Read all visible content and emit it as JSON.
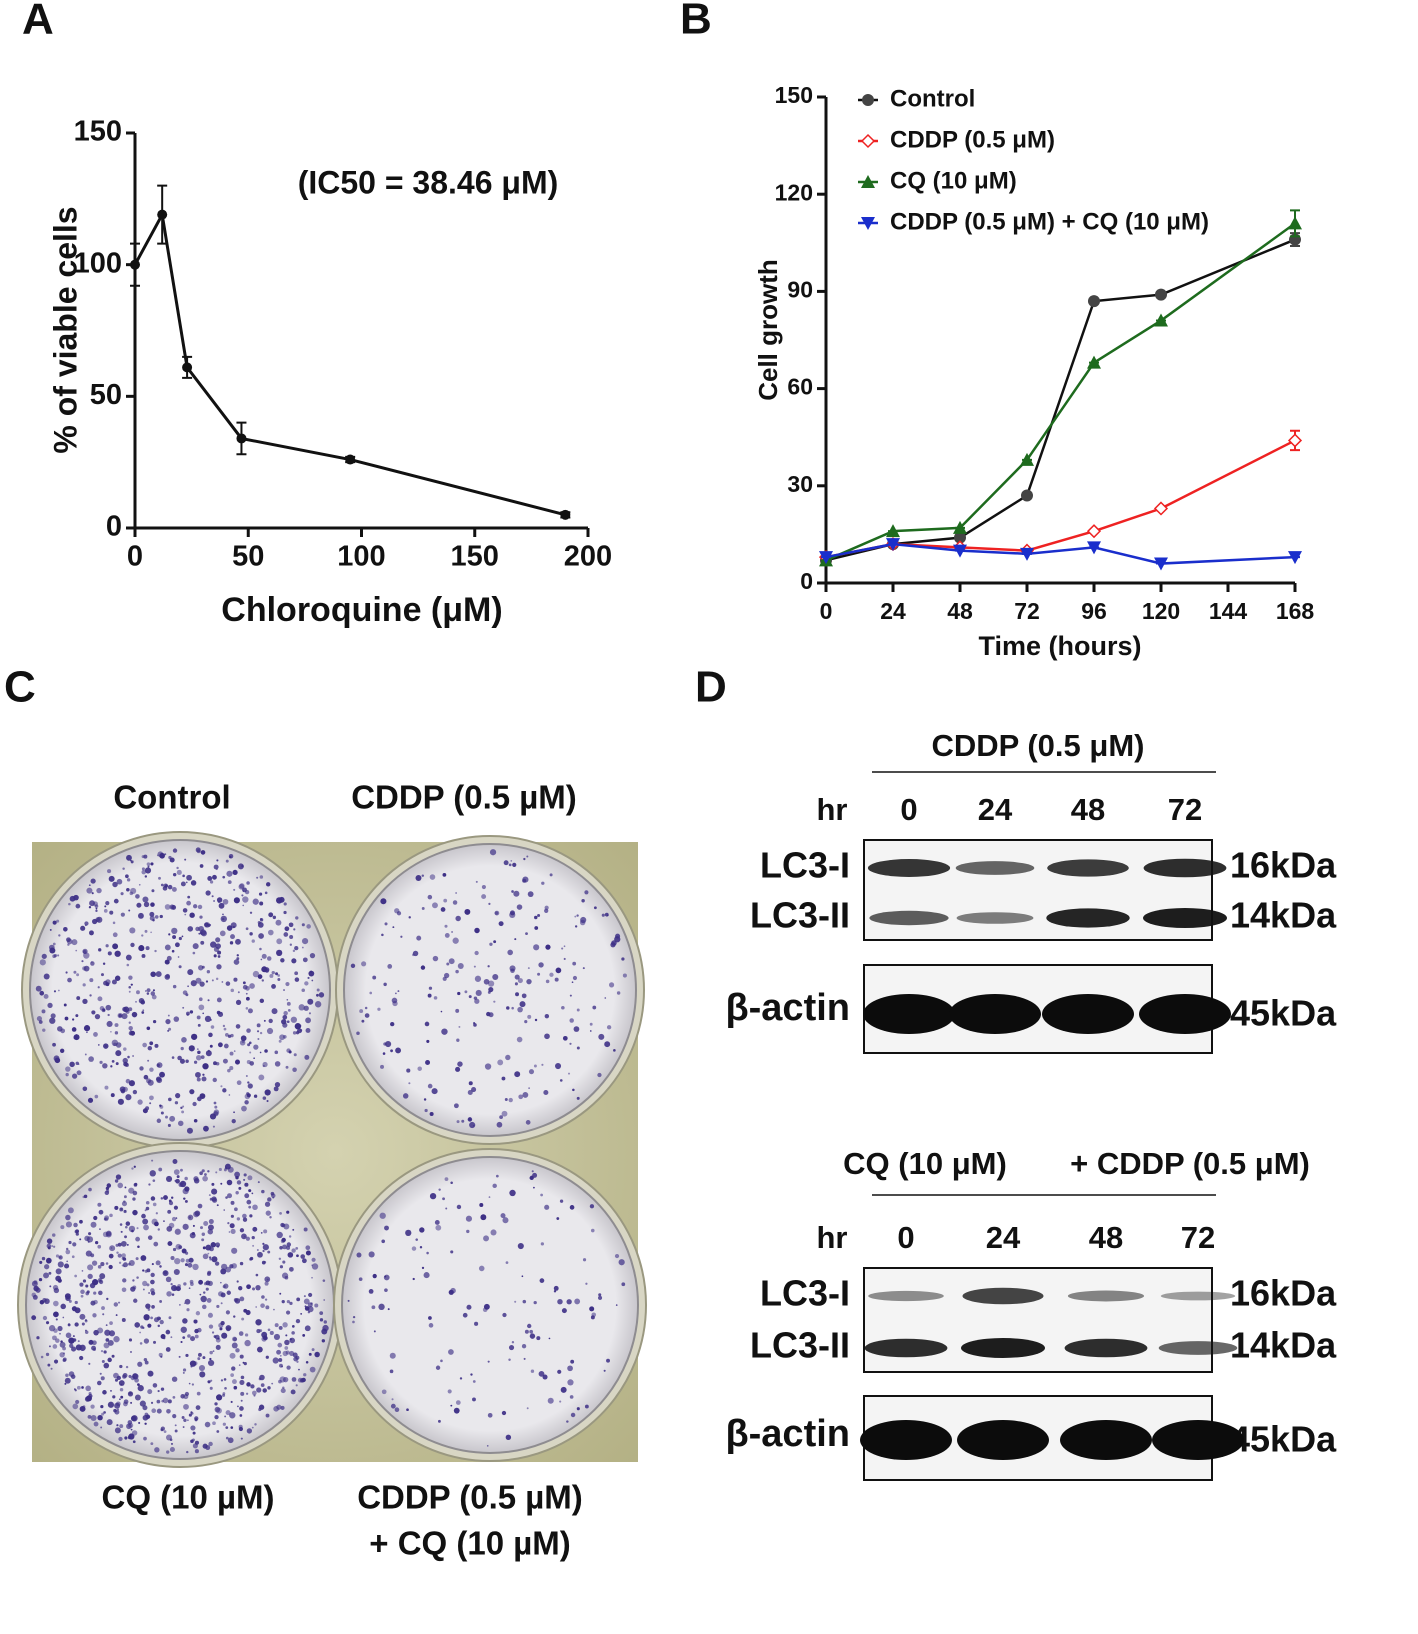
{
  "chart_data": [
    {
      "type": "line",
      "panel_label": "A",
      "annotation": "(IC50 = 38.46 μM)",
      "x_label": "Chloroquine (μM)",
      "y_label": "% of viable cells",
      "x": [
        0,
        12,
        23,
        47,
        95,
        190
      ],
      "values": [
        100,
        119,
        61,
        34,
        26,
        5
      ],
      "errors": [
        8,
        11,
        4,
        6,
        1,
        1
      ],
      "color": "#111111",
      "marker": "circle",
      "xlim": [
        0,
        200
      ],
      "xticks": [
        0,
        50,
        100,
        150,
        200
      ],
      "ylim": [
        0,
        150
      ],
      "yticks": [
        0,
        50,
        100,
        150
      ]
    },
    {
      "type": "line",
      "panel_label": "B",
      "x_label": "Time (hours)",
      "y_label": "Cell growth",
      "legend": "top-left",
      "x": [
        0,
        24,
        48,
        72,
        96,
        120,
        168
      ],
      "series": [
        {
          "name": "Control",
          "color": "#111111",
          "marker_color": "#444444",
          "marker": "circle",
          "values": [
            7,
            12,
            14,
            27,
            87,
            89,
            106
          ],
          "errors": [
            0,
            0,
            0,
            0,
            0,
            0,
            2
          ]
        },
        {
          "name": "CDDP (0.5 μM)",
          "color": "#ee2222",
          "marker_color": "#ee2222",
          "marker": "open-diamond",
          "values": [
            8,
            12,
            11,
            10,
            16,
            23,
            44
          ],
          "errors": [
            0,
            0,
            0,
            0,
            0,
            0,
            3
          ]
        },
        {
          "name": "CQ (10 μM)",
          "color": "#1e6b1e",
          "marker_color": "#1e6b1e",
          "marker": "triangle-up",
          "values": [
            7,
            16,
            17,
            38,
            68,
            81,
            111
          ],
          "errors": [
            0,
            0,
            0,
            0,
            0,
            0,
            4
          ]
        },
        {
          "name": "CDDP (0.5 μM) + CQ (10 μM)",
          "color": "#1a2ecc",
          "marker_color": "#1a2ecc",
          "marker": "triangle-down",
          "values": [
            8,
            12,
            10,
            9,
            11,
            6,
            8
          ],
          "errors": [
            0,
            0,
            0,
            0,
            0,
            0,
            0
          ]
        }
      ],
      "xlim": [
        0,
        168
      ],
      "xticks": [
        0,
        24,
        48,
        72,
        96,
        120,
        144,
        168
      ],
      "ylim": [
        0,
        150
      ],
      "yticks": [
        0,
        30,
        60,
        90,
        120,
        150
      ]
    }
  ],
  "panel_c": {
    "label": "C",
    "well_labels": [
      "Control",
      "CDDP (0.5 µM)",
      "CQ (10 µM)",
      "CDDP (0.5 µM)",
      "+ CQ (10 µM)"
    ]
  },
  "panel_d": {
    "label": "D",
    "blots": [
      {
        "treatment": [
          "CDDP (0.5 μM)"
        ],
        "time_label": "hr",
        "times": [
          0,
          24,
          48,
          72
        ],
        "bands": [
          {
            "name": "LC3-I",
            "size": "16kDa"
          },
          {
            "name": "LC3-II",
            "size": "14kDa"
          }
        ],
        "loading": {
          "name": "β-actin",
          "size": "45kDa"
        }
      },
      {
        "treatment": [
          "CQ (10 μM)",
          "+ CDDP (0.5 μM)"
        ],
        "time_label": "hr",
        "times": [
          0,
          24,
          48,
          72
        ],
        "bands": [
          {
            "name": "LC3-I",
            "size": "16kDa"
          },
          {
            "name": "LC3-II",
            "size": "14kDa"
          }
        ],
        "loading": {
          "name": "β-actin",
          "size": "45kDa"
        }
      }
    ]
  }
}
